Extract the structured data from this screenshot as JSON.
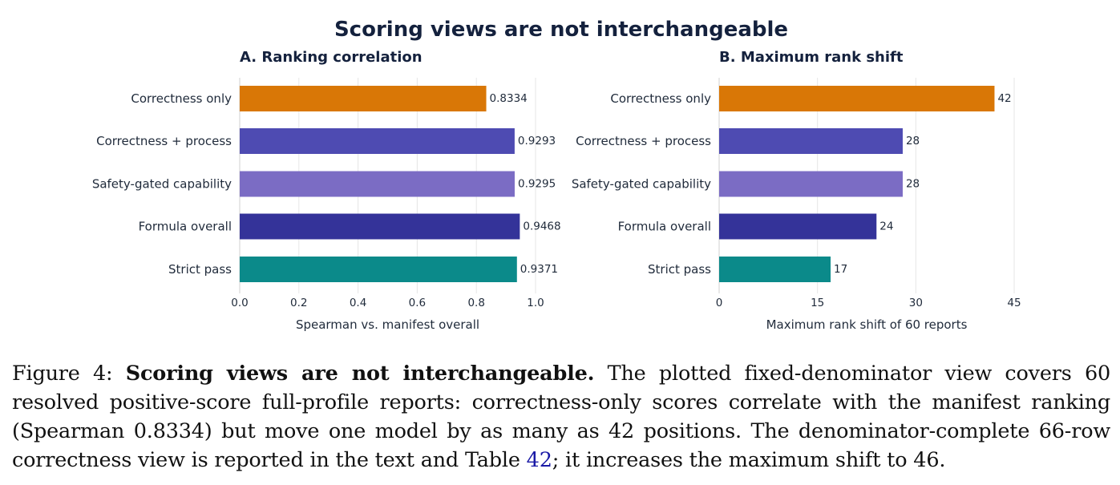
{
  "figure": {
    "title": "Scoring views are not interchangeable"
  },
  "chart_data": [
    {
      "type": "bar",
      "orientation": "horizontal",
      "title": "A. Ranking correlation",
      "categories": [
        "Correctness only",
        "Correctness + process",
        "Safety-gated capability",
        "Formula overall",
        "Strict pass"
      ],
      "values": [
        0.8334,
        0.9293,
        0.9295,
        0.9468,
        0.9371
      ],
      "value_labels": [
        "0.8334",
        "0.9293",
        "0.9295",
        "0.9468",
        "0.9371"
      ],
      "colors": [
        "#d97706",
        "#4e4bb2",
        "#7b6cc4",
        "#343399",
        "#0b8a8a"
      ],
      "xlabel": "Spearman vs. manifest overall",
      "ylabel": "",
      "xlim": [
        0.0,
        1.0
      ],
      "xticks": [
        0.0,
        0.2,
        0.4,
        0.6,
        0.8,
        1.0
      ],
      "xtick_labels": [
        "0.0",
        "0.2",
        "0.4",
        "0.6",
        "0.8",
        "1.0"
      ],
      "grid": true,
      "legend": "none"
    },
    {
      "type": "bar",
      "orientation": "horizontal",
      "title": "B. Maximum rank shift",
      "categories": [
        "Correctness only",
        "Correctness + process",
        "Safety-gated capability",
        "Formula overall",
        "Strict pass"
      ],
      "values": [
        42,
        28,
        28,
        24,
        17
      ],
      "value_labels": [
        "42",
        "28",
        "28",
        "24",
        "17"
      ],
      "colors": [
        "#d97706",
        "#4e4bb2",
        "#7b6cc4",
        "#343399",
        "#0b8a8a"
      ],
      "xlabel": "Maximum rank shift of 60 reports",
      "ylabel": "",
      "xlim": [
        0,
        45
      ],
      "xticks": [
        0,
        15,
        30,
        45
      ],
      "xtick_labels": [
        "0",
        "15",
        "30",
        "45"
      ],
      "grid": true,
      "legend": "none"
    }
  ],
  "caption": {
    "label": "Figure 4: ",
    "bold": "Scoring views are not interchangeable.",
    "text1": " The plotted fixed-denominator view covers 60 resolved positive-score full-profile reports: correctness-only scores correlate with the manifest ranking (Spearman 0.8334) but move one model by as many as 42 positions. The denominator-complete 66-row correctness view is reported in the text and Table ",
    "ref": "42",
    "text2": "; it increases the maximum shift to 46."
  }
}
